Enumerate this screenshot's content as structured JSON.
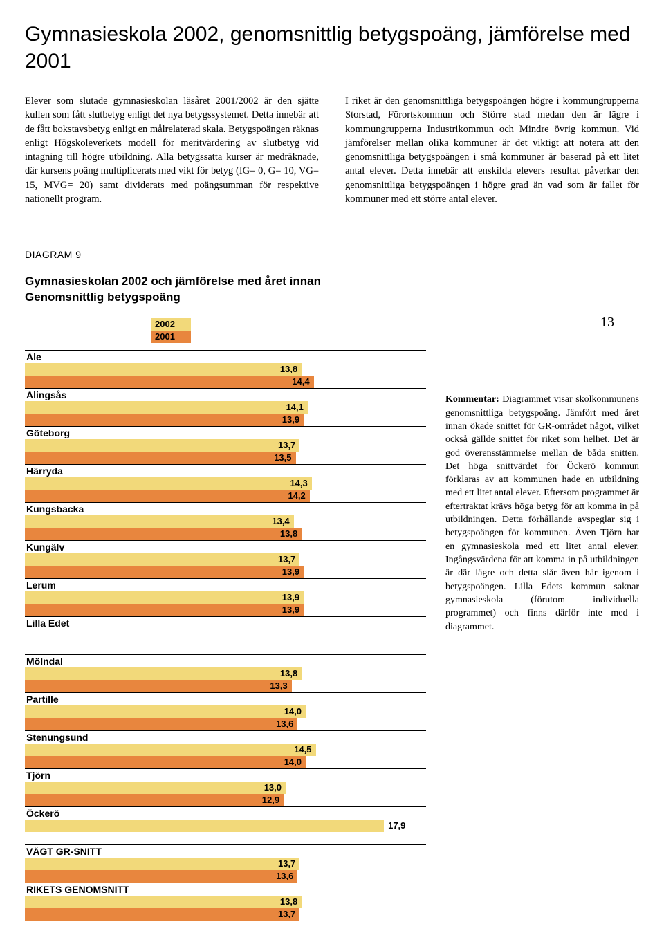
{
  "title": "Gymnasieskola 2002, genomsnittlig betygspoäng, jämförelse med 2001",
  "body_left": "Elever som slutade gymnasieskolan läsåret 2001/2002 är den sjätte kullen som fått slutbetyg enligt det nya betygssystemet. Detta innebär att de fått bokstavsbetyg enligt en målrelaterad skala. Betygspoängen räknas enligt Högskoleverkets modell för meritvärdering av slutbetyg vid intagning till högre utbildning. Alla betygssatta kurser är medräknade, där kursens poäng multiplicerats med vikt för betyg (IG= 0, G= 10, VG= 15, MVG= 20) samt dividerats med poängsumman för respektive nationellt program.",
  "body_right": "I riket är den genomsnittliga betygspoängen högre i kommungrupperna Storstad, Förortskommun och Större stad medan den är lägre i kommungrupperna Industrikommun och Mindre övrig kommun. Vid jämförelser mellan olika kommuner är det viktigt att notera att den genomsnittliga betygspoängen i små kommuner är baserad på ett litet antal elever. Detta innebär att enskilda elevers resultat påverkar den genomsnittliga betygspoängen i högre grad än vad som är fallet för kommuner med ett större antal elever.",
  "diagram_label": "DIAGRAM 9",
  "chart_title_1": "Gymnasieskolan 2002 och jämförelse med året innan",
  "chart_title_2": "Genomsnittlig betygspoäng",
  "page_number": "13",
  "legend": [
    {
      "label": "2002",
      "color": "#f2d97a"
    },
    {
      "label": "2001",
      "color": "#e8863e"
    }
  ],
  "colors": {
    "bar_2002": "#f2d97a",
    "bar_2001": "#e8863e",
    "background": "#ffffff",
    "text": "#000000"
  },
  "chart": {
    "x_max": 20,
    "bar_font": "Arial",
    "rows": [
      {
        "label": "Ale",
        "v2002": "13,8",
        "n2002": 13.8,
        "v2001": "14,4",
        "n2001": 14.4
      },
      {
        "label": "Alingsås",
        "v2002": "14,1",
        "n2002": 14.1,
        "v2001": "13,9",
        "n2001": 13.9
      },
      {
        "label": "Göteborg",
        "v2002": "13,7",
        "n2002": 13.7,
        "v2001": "13,5",
        "n2001": 13.5
      },
      {
        "label": "Härryda",
        "v2002": "14,3",
        "n2002": 14.3,
        "v2001": "14,2",
        "n2001": 14.2
      },
      {
        "label": "Kungsbacka",
        "v2002": "13,4",
        "n2002": 13.4,
        "v2001": "13,8",
        "n2001": 13.8
      },
      {
        "label": "Kungälv",
        "v2002": "13,7",
        "n2002": 13.7,
        "v2001": "13,9",
        "n2001": 13.9
      },
      {
        "label": "Lerum",
        "v2002": "13,9",
        "n2002": 13.9,
        "v2001": "13,9",
        "n2001": 13.9
      },
      {
        "label": "Lilla Edet",
        "empty": true
      },
      {
        "label": "Mölndal",
        "v2002": "13,8",
        "n2002": 13.8,
        "v2001": "13,3",
        "n2001": 13.3
      },
      {
        "label": "Partille",
        "v2002": "14,0",
        "n2002": 14.0,
        "v2001": "13,6",
        "n2001": 13.6
      },
      {
        "label": "Stenungsund",
        "v2002": "14,5",
        "n2002": 14.5,
        "v2001": "14,0",
        "n2001": 14.0
      },
      {
        "label": "Tjörn",
        "v2002": "13,0",
        "n2002": 13.0,
        "v2001": "12,9",
        "n2001": 12.9
      },
      {
        "label": "Öckerö",
        "v2002": "17,9",
        "n2002": 17.9,
        "outside2002": true
      },
      {
        "label": "VÄGT GR-SNITT",
        "v2002": "13,7",
        "n2002": 13.7,
        "v2001": "13,6",
        "n2001": 13.6
      },
      {
        "label": "RIKETS GENOMSNITT",
        "v2002": "13,8",
        "n2002": 13.8,
        "v2001": "13,7",
        "n2001": 13.7
      }
    ]
  },
  "comment_label": "Kommentar:",
  "comment_body": " Diagrammet visar skolkommunens genomsnittliga betygspoäng. Jämfört med året innan ökade snittet för GR-området något, vilket också gällde snittet för riket som helhet. Det är god överensstämmelse mellan de båda snitten. Det höga snittvärdet för Öckerö kommun förklaras av att kommunen hade en utbildning med ett litet antal elever. Eftersom programmet är eftertraktat krävs höga betyg för att komma in på utbildningen. Detta förhållande avspeglar sig i betygspoängen för kommunen. Även Tjörn har en gymnasieskola med ett litet antal elever. Ingångsvärdena för att komma in på utbildningen är där lägre och detta slår även här igenom i betygspoängen. Lilla Edets kommun saknar gymnasieskola (förutom individuella programmet) och finns därför inte med i diagrammet."
}
